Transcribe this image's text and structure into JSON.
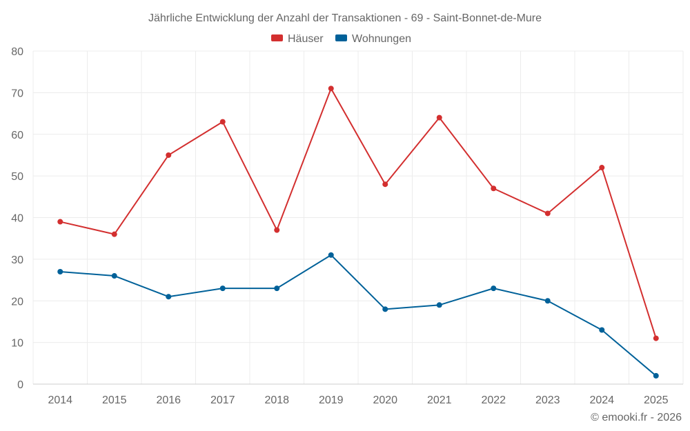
{
  "chart_data": {
    "type": "line",
    "title": "Jährliche Entwicklung der Anzahl der Transaktionen - 69 - Saint-Bonnet-de-Mure",
    "categories": [
      "2014",
      "2015",
      "2016",
      "2017",
      "2018",
      "2019",
      "2020",
      "2021",
      "2022",
      "2023",
      "2024",
      "2025"
    ],
    "series": [
      {
        "name": "Häuser",
        "color": "#d32f2f",
        "values": [
          39,
          36,
          55,
          63,
          37,
          71,
          48,
          64,
          47,
          41,
          52,
          11
        ]
      },
      {
        "name": "Wohnungen",
        "color": "#006199",
        "values": [
          27,
          26,
          21,
          23,
          23,
          31,
          18,
          19,
          23,
          20,
          13,
          2
        ]
      }
    ],
    "ylim": [
      0,
      80
    ],
    "yticks": [
      0,
      10,
      20,
      30,
      40,
      50,
      60,
      70,
      80
    ],
    "grid": true,
    "legend_position": "top-center",
    "xlabel": "",
    "ylabel": ""
  },
  "credit": "© emooki.fr - 2026"
}
